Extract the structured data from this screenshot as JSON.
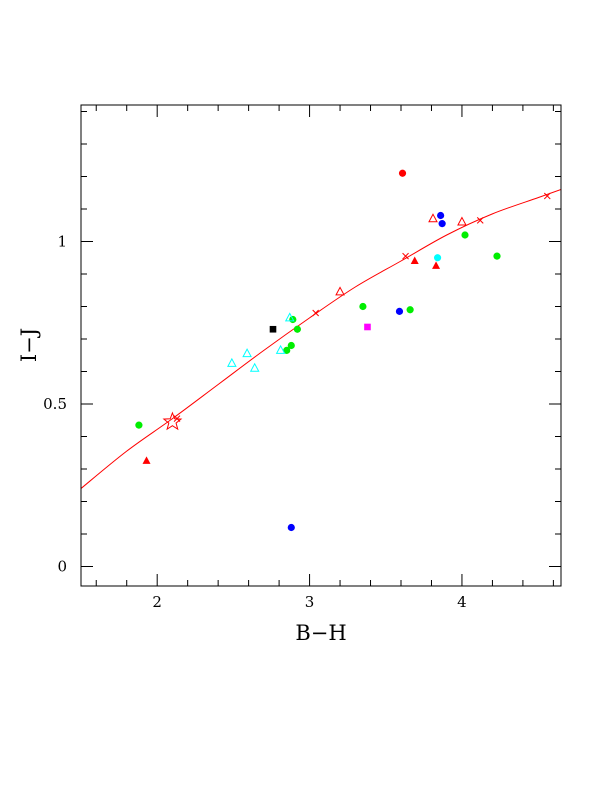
{
  "chart_data": {
    "type": "scatter",
    "title": "",
    "xlabel": "B−H",
    "ylabel": "I−J",
    "xlim": [
      1.5,
      4.65
    ],
    "ylim": [
      -0.06,
      1.42
    ],
    "xticks": [
      {
        "value": 2,
        "label": "2"
      },
      {
        "value": 3,
        "label": "3"
      },
      {
        "value": 4,
        "label": "4"
      }
    ],
    "yticks": [
      {
        "value": 0,
        "label": "0"
      },
      {
        "value": 0.5,
        "label": "0.5"
      },
      {
        "value": 1,
        "label": "1"
      }
    ],
    "grid": false,
    "legend": "none",
    "series": [
      {
        "marker": "filled-circle",
        "color": "#00ee00",
        "points": [
          [
            1.88,
            0.435
          ],
          [
            2.85,
            0.665
          ],
          [
            2.88,
            0.68
          ],
          [
            2.89,
            0.76
          ],
          [
            2.92,
            0.73
          ],
          [
            3.35,
            0.8
          ],
          [
            3.66,
            0.79
          ],
          [
            4.02,
            1.02
          ],
          [
            4.23,
            0.955
          ]
        ]
      },
      {
        "marker": "filled-circle",
        "color": "#0000ff",
        "points": [
          [
            2.88,
            0.12
          ],
          [
            3.59,
            0.785
          ],
          [
            3.86,
            1.08
          ],
          [
            3.87,
            1.055
          ]
        ]
      },
      {
        "marker": "filled-circle",
        "color": "#ff0000",
        "points": [
          [
            3.61,
            1.21
          ]
        ]
      },
      {
        "marker": "filled-circle",
        "color": "#00ffff",
        "points": [
          [
            3.84,
            0.95
          ]
        ]
      },
      {
        "marker": "filled-square",
        "color": "#000000",
        "points": [
          [
            2.76,
            0.73
          ]
        ]
      },
      {
        "marker": "filled-square",
        "color": "#ff00ff",
        "points": [
          [
            3.38,
            0.737
          ]
        ]
      },
      {
        "marker": "filled-triangle",
        "color": "#ff0000",
        "points": [
          [
            1.93,
            0.325
          ],
          [
            3.69,
            0.94
          ],
          [
            3.83,
            0.925
          ]
        ]
      },
      {
        "marker": "open-triangle",
        "color": "#ff0000",
        "points": [
          [
            3.2,
            0.845
          ],
          [
            3.81,
            1.07
          ],
          [
            4.0,
            1.06
          ]
        ]
      },
      {
        "marker": "open-triangle",
        "color": "#00ffff",
        "points": [
          [
            2.49,
            0.625
          ],
          [
            2.59,
            0.655
          ],
          [
            2.64,
            0.61
          ],
          [
            2.81,
            0.665
          ],
          [
            2.87,
            0.765
          ]
        ]
      },
      {
        "marker": "star",
        "color": "#ff0000",
        "points": [
          [
            2.1,
            0.445
          ]
        ]
      }
    ],
    "curve": {
      "color": "#ff0000",
      "points": [
        [
          1.5,
          0.24
        ],
        [
          1.8,
          0.355
        ],
        [
          2.1,
          0.455
        ],
        [
          2.4,
          0.56
        ],
        [
          2.7,
          0.665
        ],
        [
          3.0,
          0.765
        ],
        [
          3.3,
          0.86
        ],
        [
          3.6,
          0.94
        ],
        [
          3.9,
          1.02
        ],
        [
          4.2,
          1.085
        ],
        [
          4.5,
          1.135
        ],
        [
          4.65,
          1.16
        ]
      ],
      "cross_markers": [
        [
          2.13,
          0.455
        ],
        [
          3.04,
          0.78
        ],
        [
          3.63,
          0.955
        ],
        [
          4.12,
          1.065
        ],
        [
          4.56,
          1.14
        ]
      ]
    }
  }
}
